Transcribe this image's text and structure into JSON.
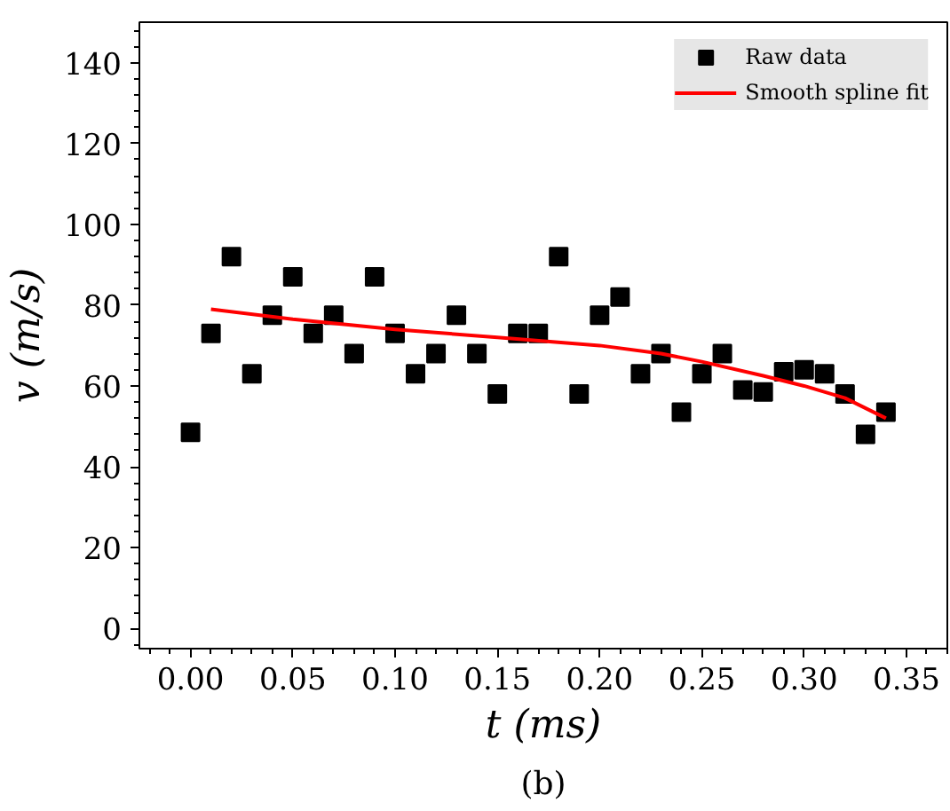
{
  "chart_data": {
    "type": "scatter",
    "xlabel": "t (ms)",
    "ylabel": "v (m/s)",
    "xlim": [
      -0.025,
      0.37
    ],
    "ylim": [
      -5,
      150
    ],
    "xticks": [
      {
        "value": 0,
        "label": "0.00"
      },
      0.05,
      {
        "value": 0.1,
        "label": "0.10"
      },
      0.15,
      {
        "value": 0.2,
        "label": "0.20"
      },
      0.25,
      {
        "value": 0.3,
        "label": "0.30"
      },
      0.35
    ],
    "yticks": [
      0,
      20,
      40,
      60,
      80,
      100,
      120,
      140
    ],
    "grid": false,
    "legend": "top right",
    "annotations": [
      "(b)"
    ],
    "series": [
      {
        "name": "Raw data",
        "marker": "square",
        "color": "#000000",
        "x": [
          0,
          0.01,
          0.02,
          0.03,
          0.04,
          0.05,
          0.06,
          0.07,
          0.08,
          0.09,
          0.1,
          0.11,
          0.12,
          0.13,
          0.14,
          0.15,
          0.16,
          0.17,
          0.18,
          0.19,
          0.2,
          0.21,
          0.22,
          0.23,
          0.24,
          0.25,
          0.26,
          0.27,
          0.28,
          0.29,
          0.3,
          0.31,
          0.32,
          0.33,
          0.34
        ],
        "values": [
          48.5,
          73,
          92,
          63,
          77.5,
          87,
          73,
          77.5,
          68,
          87,
          73,
          63,
          68,
          77.5,
          68,
          58,
          73,
          73,
          92,
          58,
          77.5,
          82,
          63,
          68,
          53.5,
          63,
          68,
          59,
          58.5,
          63.5,
          64,
          63,
          58,
          48,
          53.5
        ]
      },
      {
        "name": "Smooth spline fit",
        "type": "line",
        "marker": "none",
        "line_style": "solid",
        "color": "#ff0000",
        "x": [
          0.01,
          0.05,
          0.1,
          0.15,
          0.2,
          0.23,
          0.25,
          0.28,
          0.3,
          0.32,
          0.34
        ],
        "values": [
          79,
          76.5,
          74,
          72,
          70,
          68,
          66,
          62.5,
          60,
          57,
          52
        ]
      }
    ]
  }
}
